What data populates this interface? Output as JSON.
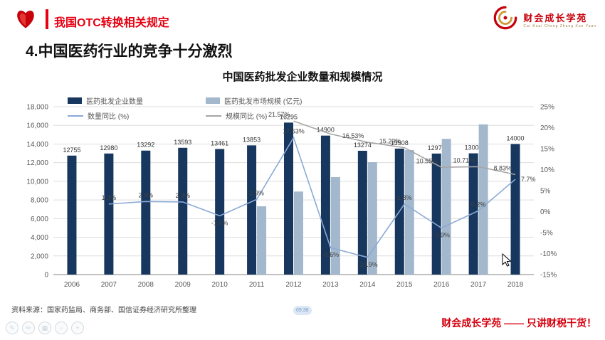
{
  "colors": {
    "accent_red": "#e60012",
    "brand_red": "#c7000b",
    "dark_bar": "#17375e",
    "gray_bar": "#a3b8cc",
    "blue_line": "#8aa9d6",
    "gray_line": "#a6a6a6"
  },
  "header": {
    "lesson_title": "我国OTC转换相关规定",
    "brand_name": "财会成长学苑",
    "brand_pinyin": "Cai Kuai Cheng Zhang Xue Yuan"
  },
  "slide": {
    "section_title": "4.中国医药行业的竞争十分激烈",
    "source_note": "资料来源：国家药监局、商务部、国信证券经济研究所整理",
    "footer_slogan": "财会成长学苑 —— 只讲财税干货！",
    "watermark_time": "09:36"
  },
  "chart_data": {
    "type": "bar",
    "subtype": "combo bar+line, dual axis",
    "title": "中国医药批发企业数量和规模情况",
    "categories": [
      "2006",
      "2007",
      "2008",
      "2009",
      "2010",
      "2011",
      "2012",
      "2013",
      "2014",
      "2015",
      "2016",
      "2017",
      "2018"
    ],
    "left_axis": {
      "min": 0,
      "max": 18000,
      "step": 2000
    },
    "right_axis": {
      "min": -15,
      "max": 25,
      "step": 5,
      "suffix": "%"
    },
    "legend_position": "top-left",
    "series": [
      {
        "name": "医药批发企业数量",
        "type": "bar",
        "axis": "left",
        "color": "#17375e",
        "values": [
          12755,
          12980,
          13292,
          13593,
          13461,
          13853,
          16295,
          14900,
          13274,
          13508,
          12975,
          13000,
          14000
        ],
        "labels": [
          "12755",
          "12980",
          "13292",
          "13593",
          "13461",
          "13853",
          "16295",
          "14900",
          "13274",
          "13508",
          "12975",
          "13000",
          "14000"
        ]
      },
      {
        "name": "医药批发市场规模 (亿元)",
        "type": "bar",
        "axis": "left",
        "color": "#a3b8cc",
        "values": [
          null,
          null,
          null,
          null,
          null,
          7320,
          8900,
          10450,
          12050,
          13350,
          14550,
          16100,
          null
        ],
        "labels": [
          null,
          null,
          null,
          null,
          null,
          null,
          null,
          null,
          null,
          null,
          null,
          null,
          null
        ]
      },
      {
        "name": "数量同比 (%)",
        "type": "line",
        "axis": "right",
        "color": "#8aa9d6",
        "values": [
          null,
          1.8,
          2.4,
          2.3,
          -1.0,
          2.9,
          17.63,
          -8.6,
          -10.9,
          1.8,
          -3.9,
          0.2,
          7.7
        ],
        "labels": [
          null,
          "1.8%",
          "2.4%",
          "2.3%",
          "-1.0%",
          "2.9%",
          "17.63%",
          "-8.6%",
          "-10.9%",
          "1.8%",
          "-3.9%",
          "0.2%",
          "7.7%"
        ]
      },
      {
        "name": "规模同比 (%)",
        "type": "line",
        "axis": "right",
        "color": "#a6a6a6",
        "values": [
          null,
          null,
          null,
          null,
          null,
          null,
          21.57,
          18.5,
          16.53,
          15.23,
          10.55,
          10.71,
          8.83
        ],
        "labels": [
          null,
          null,
          null,
          null,
          null,
          null,
          "21.57%",
          null,
          "16.53%",
          "15.23%",
          "10.55%",
          "10.71%",
          "8.83%"
        ]
      }
    ]
  },
  "toolbar": {
    "tools": [
      {
        "name": "pen-tool",
        "glyph": "✎"
      },
      {
        "name": "pencil-tool",
        "glyph": "✏"
      },
      {
        "name": "grid-tool",
        "glyph": "▦"
      },
      {
        "name": "zoom-out-tool",
        "glyph": "−"
      },
      {
        "name": "zoom-in-tool",
        "glyph": "+"
      }
    ]
  }
}
